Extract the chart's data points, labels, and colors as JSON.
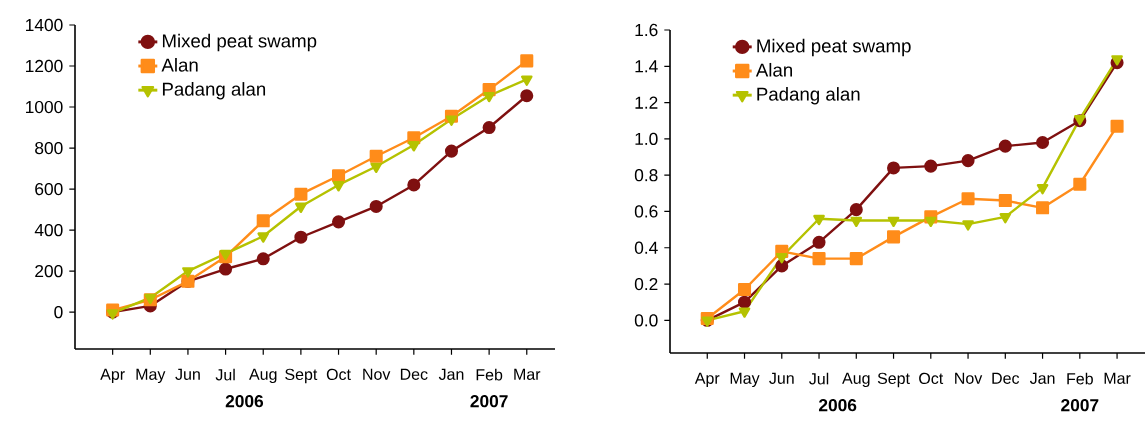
{
  "chart_data": [
    {
      "type": "line",
      "categories": [
        "Apr",
        "May",
        "Jun",
        "Jul",
        "Aug",
        "Sept",
        "Oct",
        "Nov",
        "Dec",
        "Jan",
        "Feb",
        "Mar"
      ],
      "series": [
        {
          "name": "Mixed peat swamp",
          "color": "#7f1010",
          "marker": "circle",
          "values": [
            0,
            30,
            150,
            210,
            260,
            365,
            440,
            515,
            620,
            785,
            900,
            1055
          ]
        },
        {
          "name": "Alan",
          "color": "#ff8c1a",
          "marker": "square",
          "values": [
            10,
            60,
            150,
            270,
            445,
            575,
            665,
            760,
            850,
            955,
            1085,
            1225
          ]
        },
        {
          "name": "Padang alan",
          "color": "#b5c200",
          "marker": "triangle",
          "values": [
            -5,
            70,
            200,
            285,
            370,
            515,
            620,
            710,
            815,
            940,
            1055,
            1135
          ]
        }
      ],
      "ylim": [
        -180,
        1400
      ],
      "yticks": [
        0,
        200,
        400,
        600,
        800,
        1000,
        1200,
        1400
      ],
      "legend": "top left",
      "grid": false,
      "annotations": [
        "2006",
        "2007"
      ]
    },
    {
      "type": "line",
      "categories": [
        "Apr",
        "May",
        "Jun",
        "Jul",
        "Aug",
        "Sept",
        "Oct",
        "Nov",
        "Dec",
        "Jan",
        "Feb",
        "Mar"
      ],
      "series": [
        {
          "name": "Mixed peat swamp",
          "color": "#7f1010",
          "marker": "circle",
          "values": [
            0,
            0.1,
            0.3,
            0.43,
            0.61,
            0.84,
            0.85,
            0.88,
            0.96,
            0.98,
            1.1,
            1.42
          ]
        },
        {
          "name": "Alan",
          "color": "#ff8c1a",
          "marker": "square",
          "values": [
            0.01,
            0.17,
            0.38,
            0.34,
            0.34,
            0.46,
            0.57,
            0.67,
            0.66,
            0.62,
            0.75,
            1.07
          ]
        },
        {
          "name": "Padang alan",
          "color": "#b5c200",
          "marker": "triangle",
          "values": [
            0,
            0.05,
            0.35,
            0.56,
            0.55,
            0.55,
            0.55,
            0.53,
            0.57,
            0.73,
            1.11,
            1.44
          ]
        }
      ],
      "ylim": [
        -0.18,
        1.6
      ],
      "yticks": [
        {
          "value": 0,
          "label": "0.0"
        },
        {
          "value": 0.2,
          "label": "0.2"
        },
        {
          "value": 0.4,
          "label": "0.4"
        },
        {
          "value": 0.6,
          "label": "0.6"
        },
        {
          "value": 0.8,
          "label": "0.8"
        },
        {
          "value": 1.0,
          "label": "1.0"
        },
        {
          "value": 1.2,
          "label": "1.2"
        },
        {
          "value": 1.4,
          "label": "1.4"
        },
        {
          "value": 1.6,
          "label": "1.6"
        }
      ],
      "legend": "top left",
      "grid": false,
      "annotations": [
        "2006",
        "2007"
      ]
    }
  ]
}
